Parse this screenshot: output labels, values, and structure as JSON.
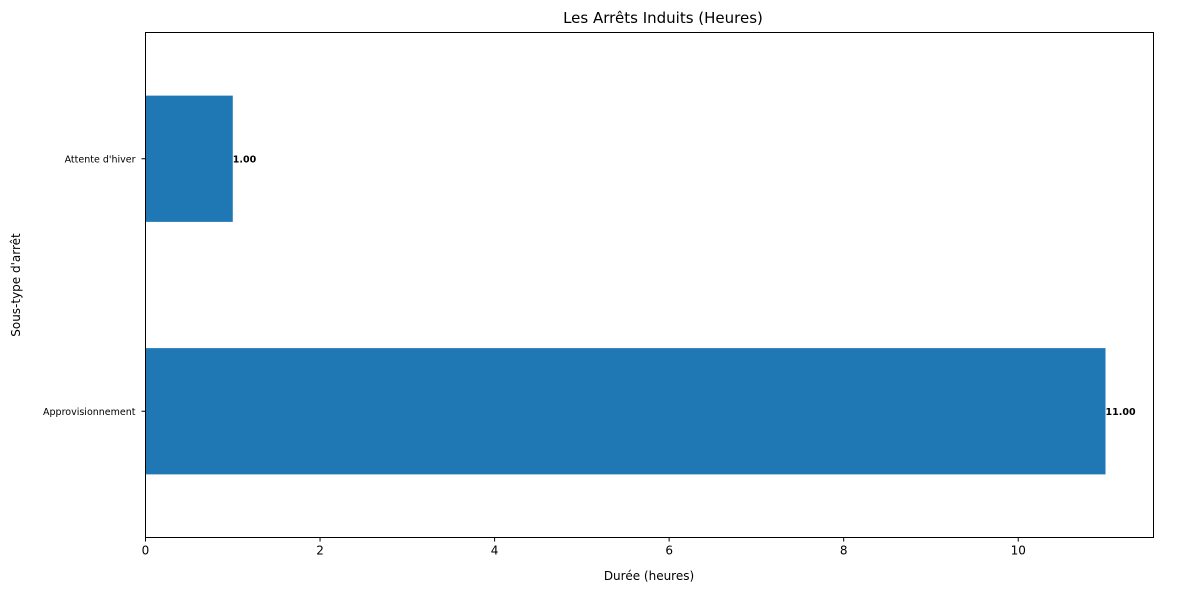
{
  "chart_data": {
    "type": "bar",
    "orientation": "horizontal",
    "title": "Les Arrêts Induits (Heures)",
    "xlabel": "Durée (heures)",
    "ylabel": "Sous-type d'arrêt",
    "categories": [
      "Approvisionnement",
      "Attente d'hiver"
    ],
    "values": [
      11.0,
      1.0
    ],
    "data_labels": [
      "11.00",
      "1.00"
    ],
    "xlim": [
      0,
      11.55
    ],
    "xticks": [
      0,
      2,
      4,
      6,
      8,
      10
    ],
    "grid": false,
    "colors": {
      "bar": "#1f77b4"
    }
  }
}
